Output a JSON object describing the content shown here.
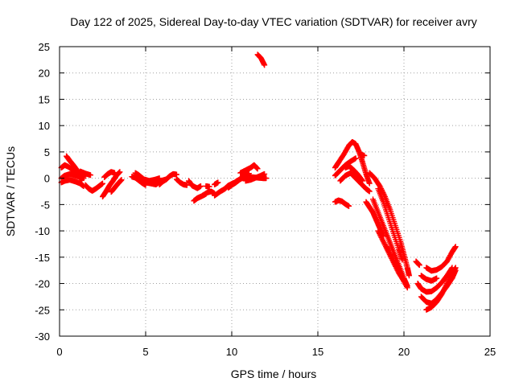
{
  "chart_data": {
    "type": "scatter",
    "title": "Day 122 of 2025, Sidereal Day-to-day VTEC variation (SDTVAR) for receiver avry",
    "xlabel": "GPS time / hours",
    "ylabel": "SDTVAR / TECUs",
    "xlim": [
      0,
      25
    ],
    "ylim": [
      -30,
      25
    ],
    "xticks": [
      0,
      5,
      10,
      15,
      20,
      25
    ],
    "yticks": [
      -30,
      -25,
      -20,
      -15,
      -10,
      -5,
      0,
      5,
      10,
      15,
      20,
      25
    ],
    "grid": true,
    "marker": "+",
    "marker_color": "#ff0000",
    "series": [
      {
        "name": "SDTVAR",
        "tracks": [
          [
            [
              0.1,
              2.0
            ],
            [
              0.3,
              2.5
            ],
            [
              0.5,
              2.2
            ],
            [
              0.8,
              1.5
            ],
            [
              1.1,
              0.5
            ],
            [
              1.3,
              -0.3
            ]
          ],
          [
            [
              0.1,
              0.0
            ],
            [
              0.3,
              0.5
            ],
            [
              0.6,
              0.8
            ],
            [
              0.9,
              0.5
            ],
            [
              1.2,
              0.2
            ],
            [
              1.4,
              0.0
            ]
          ],
          [
            [
              0.1,
              -0.8
            ],
            [
              0.3,
              -0.5
            ],
            [
              0.6,
              -0.3
            ],
            [
              0.9,
              -0.6
            ],
            [
              1.2,
              -1.0
            ],
            [
              1.4,
              -1.5
            ]
          ],
          [
            [
              0.4,
              4.2
            ],
            [
              0.6,
              3.3
            ],
            [
              0.8,
              2.5
            ],
            [
              1.0,
              1.6
            ],
            [
              1.2,
              0.9
            ],
            [
              1.4,
              0.3
            ]
          ],
          [
            [
              1.2,
              1.3
            ],
            [
              1.5,
              0.9
            ],
            [
              1.8,
              0.6
            ]
          ],
          [
            [
              1.5,
              -1.3
            ],
            [
              1.7,
              -2.0
            ],
            [
              1.9,
              -2.4
            ],
            [
              2.1,
              -2.0
            ],
            [
              2.3,
              -1.5
            ],
            [
              2.5,
              -1.0
            ]
          ],
          [
            [
              2.5,
              -3.5
            ],
            [
              2.7,
              -2.5
            ],
            [
              2.9,
              -1.4
            ],
            [
              3.1,
              -0.5
            ],
            [
              3.3,
              0.5
            ],
            [
              3.5,
              1.2
            ]
          ],
          [
            [
              2.6,
              0.2
            ],
            [
              2.8,
              0.8
            ],
            [
              3.0,
              1.2
            ],
            [
              3.2,
              1.0
            ]
          ],
          [
            [
              3.0,
              -2.6
            ],
            [
              3.2,
              -1.8
            ],
            [
              3.4,
              -1.0
            ],
            [
              3.6,
              -0.3
            ]
          ],
          [
            [
              4.2,
              0.3
            ],
            [
              4.4,
              0.1
            ],
            [
              4.6,
              -0.4
            ],
            [
              4.8,
              -0.9
            ],
            [
              5.0,
              -1.3
            ]
          ],
          [
            [
              4.4,
              1.0
            ],
            [
              4.6,
              0.6
            ],
            [
              4.9,
              -0.2
            ],
            [
              5.2,
              -0.5
            ],
            [
              5.5,
              -0.3
            ],
            [
              5.8,
              0.0
            ]
          ],
          [
            [
              5.0,
              -0.8
            ],
            [
              5.3,
              -1.0
            ],
            [
              5.6,
              -1.2
            ],
            [
              5.9,
              -0.5
            ],
            [
              6.2,
              -0.2
            ]
          ],
          [
            [
              5.8,
              -1.2
            ],
            [
              6.0,
              -0.6
            ],
            [
              6.2,
              -0.2
            ],
            [
              6.4,
              0.4
            ],
            [
              6.6,
              0.8
            ],
            [
              6.8,
              0.7
            ]
          ],
          [
            [
              6.8,
              -0.2
            ],
            [
              7.0,
              -0.8
            ],
            [
              7.2,
              -1.2
            ],
            [
              7.4,
              -1.3
            ]
          ],
          [
            [
              7.5,
              -0.5
            ],
            [
              7.7,
              -1.4
            ],
            [
              8.0,
              -1.9
            ],
            [
              8.2,
              -1.5
            ]
          ],
          [
            [
              7.8,
              -4.3
            ],
            [
              8.0,
              -3.8
            ],
            [
              8.2,
              -3.5
            ],
            [
              8.5,
              -3.0
            ]
          ],
          [
            [
              8.3,
              -3.3
            ],
            [
              8.6,
              -2.7
            ],
            [
              8.8,
              -2.5
            ],
            [
              9.0,
              -2.9
            ]
          ],
          [
            [
              8.5,
              -1.5
            ],
            [
              8.7,
              -1.6
            ]
          ],
          [
            [
              9.0,
              -1.2
            ],
            [
              9.2,
              -0.8
            ]
          ],
          [
            [
              9.0,
              -3.3
            ],
            [
              9.3,
              -2.6
            ],
            [
              9.6,
              -2.0
            ],
            [
              9.8,
              -1.4
            ],
            [
              10.1,
              -0.9
            ]
          ],
          [
            [
              9.8,
              -1.8
            ],
            [
              10.0,
              -1.3
            ],
            [
              10.2,
              -0.9
            ],
            [
              10.4,
              -0.4
            ],
            [
              10.6,
              0.2
            ],
            [
              10.8,
              0.6
            ],
            [
              11.0,
              0.9
            ]
          ],
          [
            [
              10.0,
              -1.2
            ],
            [
              10.3,
              -0.5
            ],
            [
              10.6,
              0.0
            ],
            [
              10.9,
              0.2
            ],
            [
              11.2,
              0.2
            ],
            [
              11.5,
              0.1
            ],
            [
              11.8,
              0.0
            ],
            [
              12.0,
              0.0
            ]
          ],
          [
            [
              10.5,
              1.0
            ],
            [
              10.8,
              1.5
            ],
            [
              11.1,
              2.0
            ],
            [
              11.3,
              2.5
            ],
            [
              11.5,
              1.8
            ]
          ],
          [
            [
              10.8,
              -0.5
            ],
            [
              11.1,
              -0.3
            ],
            [
              11.4,
              0.1
            ],
            [
              11.7,
              0.5
            ],
            [
              11.9,
              0.8
            ]
          ],
          [
            [
              11.5,
              23.5
            ],
            [
              11.7,
              22.8
            ],
            [
              11.9,
              21.5
            ]
          ],
          [
            [
              16.0,
              -4.5
            ],
            [
              16.2,
              -4.2
            ],
            [
              16.4,
              -4.4
            ],
            [
              16.6,
              -4.9
            ],
            [
              16.8,
              -5.3
            ]
          ],
          [
            [
              16.0,
              0.5
            ],
            [
              16.3,
              1.5
            ],
            [
              16.6,
              2.5
            ],
            [
              16.9,
              3.2
            ],
            [
              17.2,
              3.8
            ]
          ],
          [
            [
              16.0,
              2.0
            ],
            [
              16.2,
              3.0
            ],
            [
              16.5,
              4.5
            ],
            [
              16.8,
              6.2
            ],
            [
              17.0,
              6.9
            ],
            [
              17.2,
              6.5
            ],
            [
              17.4,
              5.0
            ],
            [
              17.6,
              3.0
            ],
            [
              17.8,
              0.8
            ],
            [
              18.0,
              -1.0
            ]
          ],
          [
            [
              16.3,
              -0.5
            ],
            [
              16.6,
              0.5
            ],
            [
              16.9,
              1.0
            ],
            [
              17.2,
              0.0
            ],
            [
              17.5,
              -1.0
            ],
            [
              17.8,
              -2.0
            ],
            [
              18.0,
              -2.5
            ]
          ],
          [
            [
              16.6,
              2.0
            ],
            [
              16.8,
              2.3
            ],
            [
              17.0,
              1.8
            ],
            [
              17.3,
              0.8
            ],
            [
              17.6,
              -0.5
            ]
          ],
          [
            [
              17.5,
              4.5
            ],
            [
              17.7,
              4.3
            ]
          ],
          [
            [
              17.8,
              -4.5
            ],
            [
              18.0,
              -5.5
            ],
            [
              18.2,
              -6.5
            ],
            [
              18.4,
              -8.0
            ],
            [
              18.6,
              -9.5
            ],
            [
              18.8,
              -11.0
            ]
          ],
          [
            [
              18.0,
              1.0
            ],
            [
              18.3,
              0.0
            ],
            [
              18.6,
              -1.5
            ],
            [
              18.9,
              -3.5
            ],
            [
              19.2,
              -6.0
            ],
            [
              19.5,
              -9.0
            ],
            [
              19.8,
              -12.0
            ],
            [
              20.0,
              -14.5
            ],
            [
              20.2,
              -17.0
            ],
            [
              20.3,
              -18.5
            ]
          ],
          [
            [
              18.2,
              -4.0
            ],
            [
              18.5,
              -6.5
            ],
            [
              18.8,
              -9.0
            ],
            [
              19.1,
              -11.5
            ],
            [
              19.4,
              -14.0
            ],
            [
              19.7,
              -16.5
            ],
            [
              20.0,
              -19.0
            ],
            [
              20.2,
              -20.5
            ]
          ],
          [
            [
              18.5,
              -2.0
            ],
            [
              18.8,
              -4.5
            ],
            [
              19.1,
              -7.5
            ],
            [
              19.4,
              -10.5
            ],
            [
              19.7,
              -13.5
            ],
            [
              19.9,
              -15.5
            ]
          ],
          [
            [
              18.5,
              -10.0
            ],
            [
              18.8,
              -12.0
            ],
            [
              19.1,
              -14.0
            ],
            [
              19.4,
              -16.0
            ],
            [
              19.7,
              -18.0
            ],
            [
              20.0,
              -19.5
            ]
          ],
          [
            [
              19.0,
              -13.0
            ],
            [
              19.3,
              -15.0
            ],
            [
              19.6,
              -17.0
            ],
            [
              19.9,
              -19.0
            ],
            [
              20.2,
              -20.8
            ]
          ],
          [
            [
              20.7,
              -15.8
            ],
            [
              20.9,
              -16.5
            ]
          ],
          [
            [
              20.8,
              -20.0
            ],
            [
              21.0,
              -21.0
            ],
            [
              21.3,
              -21.6
            ],
            [
              21.6,
              -21.5
            ],
            [
              21.9,
              -20.8
            ],
            [
              22.2,
              -19.8
            ],
            [
              22.5,
              -18.5
            ],
            [
              22.8,
              -17.0
            ]
          ],
          [
            [
              21.0,
              -22.5
            ],
            [
              21.3,
              -23.5
            ],
            [
              21.6,
              -23.8
            ],
            [
              21.9,
              -23.0
            ],
            [
              22.2,
              -21.8
            ],
            [
              22.5,
              -20.5
            ],
            [
              22.8,
              -19.0
            ],
            [
              23.0,
              -17.5
            ]
          ],
          [
            [
              21.3,
              -25.0
            ],
            [
              21.6,
              -24.5
            ],
            [
              21.9,
              -23.5
            ],
            [
              22.2,
              -22.0
            ],
            [
              22.5,
              -20.0
            ],
            [
              22.8,
              -18.0
            ],
            [
              23.0,
              -17.0
            ]
          ],
          [
            [
              21.3,
              -17.0
            ],
            [
              21.6,
              -17.6
            ],
            [
              21.9,
              -17.4
            ],
            [
              22.2,
              -16.8
            ],
            [
              22.5,
              -15.8
            ],
            [
              22.8,
              -14.0
            ],
            [
              23.0,
              -13.0
            ]
          ],
          [
            [
              21.0,
              -18.5
            ],
            [
              21.3,
              -19.2
            ],
            [
              21.6,
              -19.5
            ],
            [
              21.9,
              -19.0
            ]
          ]
        ]
      }
    ]
  }
}
